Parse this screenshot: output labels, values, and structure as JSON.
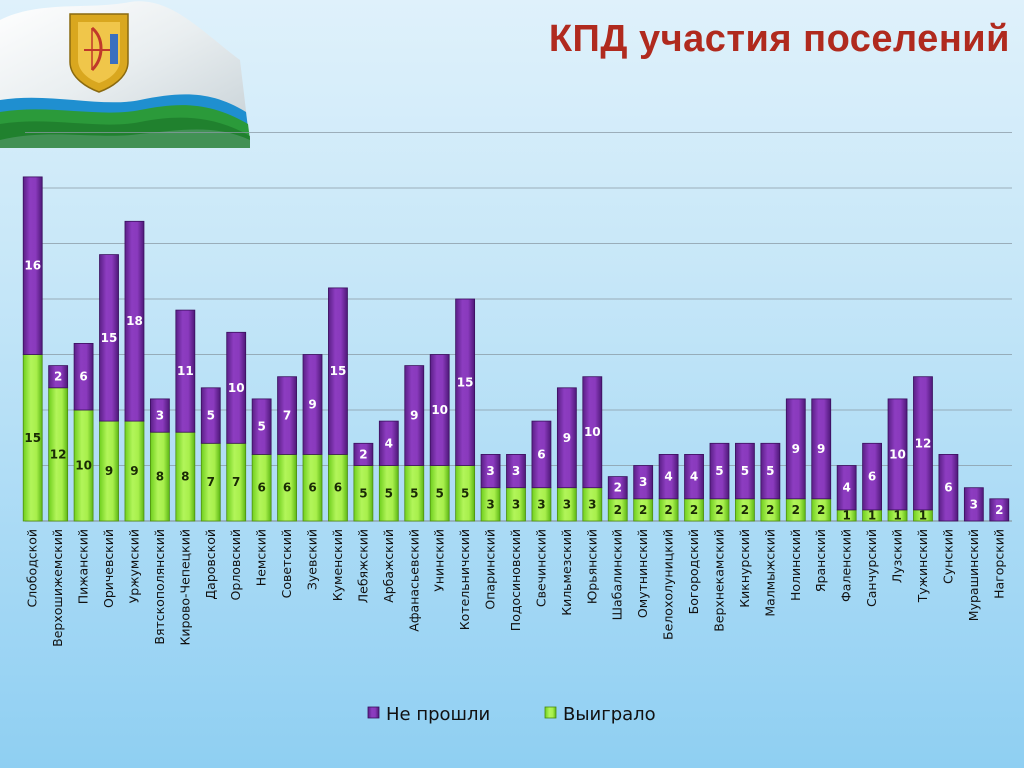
{
  "title": "КПД участия поселений",
  "colors": {
    "not_passed": "#7b2ea8",
    "won": "#9cf03a",
    "title": "#b02a1e"
  },
  "chart_data": {
    "type": "bar",
    "stacked": true,
    "grid": true,
    "legend_position": "bottom",
    "ylim": [
      0,
      31
    ],
    "categories": [
      "Слободской",
      "Верхошижемский",
      "Пижанский",
      "Оричевский",
      "Уржумский",
      "Вятскополянский",
      "Кирово-Чепецкий",
      "Даровской",
      "Орловский",
      "Немский",
      "Советский",
      "Зуевский",
      "Куменский",
      "Лебяжский",
      "Арбажский",
      "Афанасьевский",
      "Унинский",
      "Котельничский",
      "Опаринский",
      "Подосиновский",
      "Свечинский",
      "Кильмезский",
      "Юрьянский",
      "Шабалинский",
      "Омутнинский",
      "Белохолуницкий",
      "Богородский",
      "Верхнекамский",
      "Кикнурский",
      "Малмыжский",
      "Нолинский",
      "Яранский",
      "Фаленский",
      "Санчурский",
      "Лузский",
      "Тужинский",
      "Сунский",
      "Мурашинский",
      "Нагорский"
    ],
    "series": [
      {
        "name": "Выиграло",
        "values": [
          15,
          12,
          10,
          9,
          9,
          8,
          8,
          7,
          7,
          6,
          6,
          6,
          6,
          5,
          5,
          5,
          5,
          5,
          3,
          3,
          3,
          3,
          3,
          2,
          2,
          2,
          2,
          2,
          2,
          2,
          2,
          2,
          1,
          1,
          1,
          1,
          0,
          0,
          0
        ]
      },
      {
        "name": "Не прошли",
        "values": [
          16,
          2,
          6,
          15,
          18,
          3,
          11,
          5,
          10,
          5,
          7,
          9,
          15,
          2,
          4,
          9,
          10,
          15,
          3,
          3,
          6,
          9,
          10,
          2,
          3,
          4,
          4,
          5,
          5,
          5,
          9,
          9,
          4,
          6,
          10,
          12,
          6,
          3,
          2
        ]
      }
    ]
  },
  "legend": {
    "not_passed": "Не прошли",
    "won": "Выиграло"
  }
}
